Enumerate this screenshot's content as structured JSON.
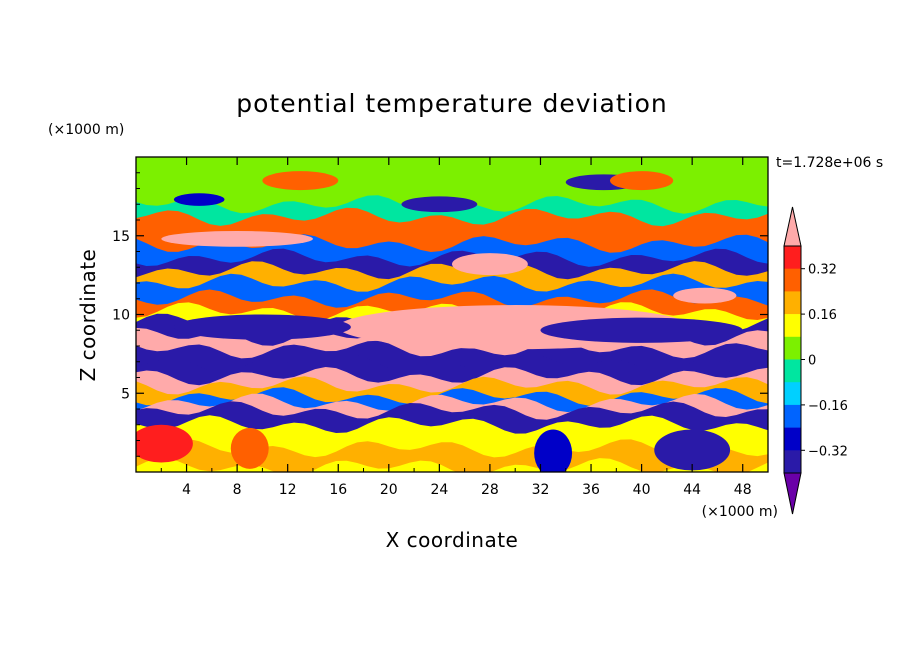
{
  "chart_data": {
    "type": "heatmap",
    "title": "potential temperature deviation",
    "xlabel": "X coordinate",
    "ylabel": "Z coordinate",
    "x_unit": "(×1000 m)",
    "y_unit": "(×1000 m)",
    "time_label": "t=1.728e+06 s",
    "xlim": [
      0,
      50
    ],
    "ylim": [
      0,
      20
    ],
    "x_ticks": [
      "4",
      "8",
      "12",
      "16",
      "20",
      "24",
      "28",
      "32",
      "36",
      "40",
      "44",
      "48"
    ],
    "y_ticks": [
      "5",
      "10",
      "15"
    ],
    "colorbar": {
      "tick_labels": [
        "0.32",
        "0.16",
        "0",
        "−0.16",
        "−0.32"
      ],
      "tick_values": [
        0.32,
        0.16,
        0,
        -0.16,
        -0.32
      ],
      "levels": [
        -0.4,
        -0.32,
        -0.24,
        -0.16,
        -0.08,
        0,
        0.08,
        0.16,
        0.24,
        0.32,
        0.4
      ],
      "colors": [
        "#6a00a8",
        "#2a1aa8",
        "#0000c8",
        "#0064ff",
        "#00d0ff",
        "#00e6a0",
        "#7cf000",
        "#ffff00",
        "#ffb000",
        "#ff6000",
        "#ff1e1e",
        "#ffaaaa"
      ]
    },
    "bands": [
      {
        "z": 19.5,
        "value": 0.05
      },
      {
        "z": 18.0,
        "value": 0.03
      },
      {
        "z": 17.0,
        "value": -0.08
      },
      {
        "z": 16.2,
        "value": 0.25
      },
      {
        "z": 15.3,
        "value": 0.3
      },
      {
        "z": 14.5,
        "value": -0.2
      },
      {
        "z": 13.6,
        "value": -0.38
      },
      {
        "z": 12.8,
        "value": 0.22
      },
      {
        "z": 12.0,
        "value": -0.22
      },
      {
        "z": 11.0,
        "value": 0.3
      },
      {
        "z": 10.2,
        "value": 0.1
      },
      {
        "z": 9.5,
        "value": -0.4
      },
      {
        "z": 8.6,
        "value": 0.42
      },
      {
        "z": 7.8,
        "value": -0.33
      },
      {
        "z": 6.9,
        "value": -0.4
      },
      {
        "z": 6.1,
        "value": 0.45
      },
      {
        "z": 5.5,
        "value": 0.22
      },
      {
        "z": 4.8,
        "value": -0.2
      },
      {
        "z": 4.4,
        "value": 0.45
      },
      {
        "z": 3.9,
        "value": -0.4
      },
      {
        "z": 3.0,
        "value": 0.1
      },
      {
        "z": 1.5,
        "value": 0.2
      },
      {
        "z": 0.3,
        "value": 0.12
      }
    ],
    "features": [
      {
        "x": 8,
        "z": 14.8,
        "rx": 6,
        "rz": 0.5,
        "value": 0.45
      },
      {
        "x": 28,
        "z": 13.2,
        "rx": 3,
        "rz": 0.7,
        "value": 0.45
      },
      {
        "x": 45,
        "z": 11.2,
        "rx": 2.5,
        "rz": 0.5,
        "value": 0.45
      },
      {
        "x": 30,
        "z": 9.2,
        "rx": 14,
        "rz": 1.4,
        "value": 0.45
      },
      {
        "x": 40,
        "z": 9.0,
        "rx": 8,
        "rz": 0.8,
        "value": -0.4
      },
      {
        "x": 10,
        "z": 9.2,
        "rx": 7,
        "rz": 0.8,
        "value": -0.4
      },
      {
        "x": 2,
        "z": 1.8,
        "rx": 2.5,
        "rz": 1.2,
        "value": 0.38
      },
      {
        "x": 9,
        "z": 1.5,
        "rx": 1.5,
        "rz": 1.3,
        "value": 0.3
      },
      {
        "x": 44,
        "z": 1.4,
        "rx": 3,
        "rz": 1.3,
        "value": -0.4
      },
      {
        "x": 33,
        "z": 1.2,
        "rx": 1.5,
        "rz": 1.5,
        "value": -0.3
      },
      {
        "x": 37,
        "z": 18.4,
        "rx": 3,
        "rz": 0.5,
        "value": -0.4
      },
      {
        "x": 13,
        "z": 18.5,
        "rx": 3,
        "rz": 0.6,
        "value": 0.25
      },
      {
        "x": 40,
        "z": 18.5,
        "rx": 2.5,
        "rz": 0.6,
        "value": 0.3
      },
      {
        "x": 5,
        "z": 17.3,
        "rx": 2,
        "rz": 0.4,
        "value": -0.3
      },
      {
        "x": 24,
        "z": 17.0,
        "rx": 3,
        "rz": 0.5,
        "value": -0.35
      }
    ]
  }
}
